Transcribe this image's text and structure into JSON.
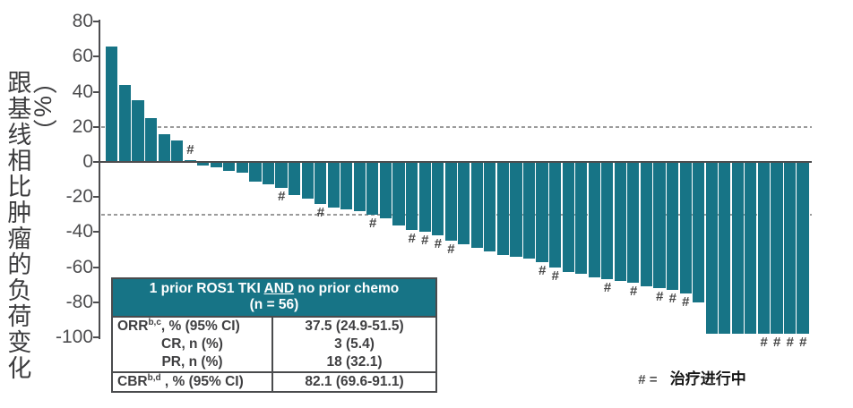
{
  "colors": {
    "bar": "#177486",
    "table_header_bg": "#177486",
    "axis": "#4d4d4f",
    "dashed_line": "#9b9b9b",
    "table_border": "#4a4b4d"
  },
  "chart_data": {
    "type": "bar",
    "title": "",
    "ylabel": "跟基线相比肿瘤的负荷变化（%）",
    "xlabel": "",
    "ylim": [
      -100,
      80
    ],
    "yticks": [
      80,
      60,
      40,
      20,
      0,
      -20,
      -40,
      -60,
      -80,
      -100
    ],
    "reference_lines": [
      20,
      -30
    ],
    "grid": "off",
    "legend_position": "bottom-right",
    "ongoing_marker": "#",
    "values": [
      66,
      44,
      35,
      25,
      16,
      12,
      1,
      -2,
      -3,
      -5,
      -6,
      -11,
      -13,
      -15,
      -19,
      -21,
      -24,
      -26,
      -27,
      -28,
      -30,
      -32,
      -36,
      -39,
      -40,
      -42,
      -45,
      -47,
      -49,
      -51,
      -53,
      -54,
      -55,
      -57,
      -60,
      -63,
      -64,
      -66,
      -67,
      -68,
      -69,
      -71,
      -72,
      -73,
      -75,
      -80,
      -98,
      -98,
      -98,
      -98,
      -98,
      -98,
      -98,
      -98
    ],
    "ongoing_indices": [
      6,
      13,
      16,
      20,
      23,
      24,
      25,
      26,
      33,
      34,
      38,
      40,
      42,
      43,
      44,
      50,
      51,
      52,
      53
    ]
  },
  "table": {
    "header_line1_pre": "1 prior ROS1 TKI ",
    "header_line1_underlined": "AND",
    "header_line1_post": " no prior chemo",
    "header_line2": "(n = 56)",
    "rows": [
      {
        "label": "ORR",
        "sup": "b,c",
        "rest": ", % (95% CI)",
        "value": "37.5 (24.9-51.5)",
        "indent": false,
        "sep": false
      },
      {
        "label": "CR",
        "sup": "",
        "rest": ", n (%)",
        "value": "3 (5.4)",
        "indent": true,
        "sep": false
      },
      {
        "label": "PR",
        "sup": "",
        "rest": ", n (%)",
        "value": "18 (32.1)",
        "indent": true,
        "sep": false
      },
      {
        "label": "CBR",
        "sup": "b,d",
        "rest": " , % (95% CI)",
        "value": "82.1 (69.6-91.1)",
        "indent": false,
        "sep": true
      }
    ]
  },
  "legend": {
    "symbol": "# =",
    "text": "治疗进行中"
  }
}
